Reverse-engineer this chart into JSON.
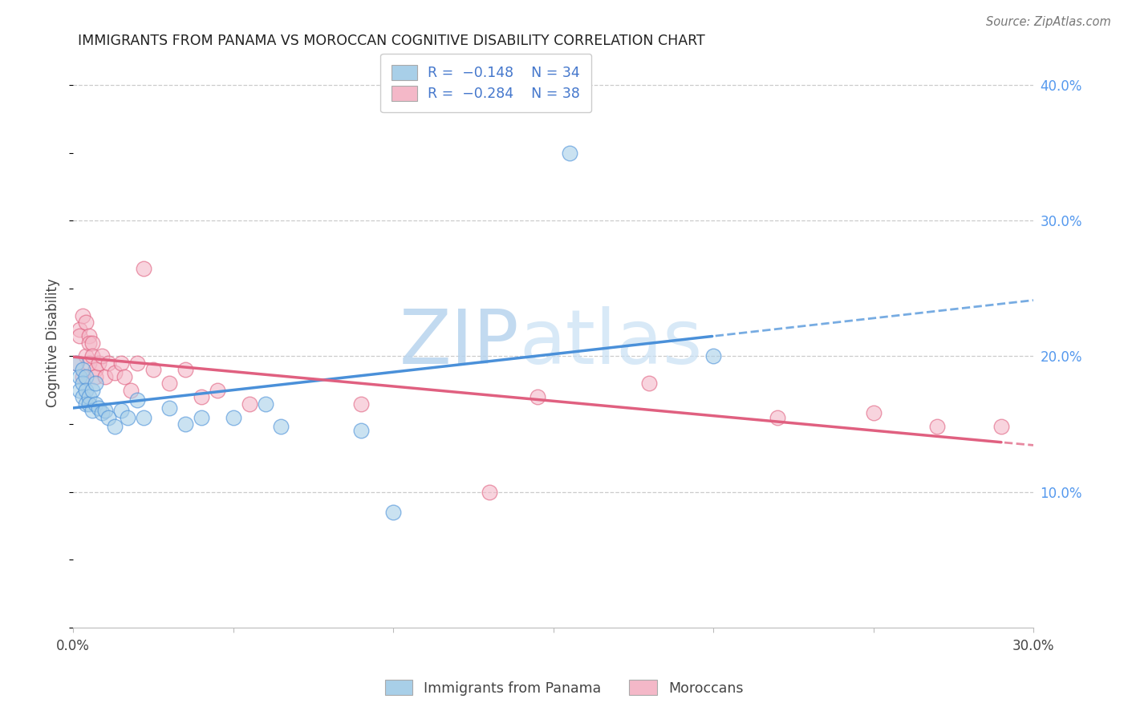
{
  "title": "IMMIGRANTS FROM PANAMA VS MOROCCAN COGNITIVE DISABILITY CORRELATION CHART",
  "source": "Source: ZipAtlas.com",
  "ylabel_label": "Cognitive Disability",
  "xlim": [
    0.0,
    0.3
  ],
  "ylim": [
    0.0,
    0.42
  ],
  "y_ticks_right": [
    0.1,
    0.2,
    0.3,
    0.4
  ],
  "y_tick_labels_right": [
    "10.0%",
    "20.0%",
    "30.0%",
    "40.0%"
  ],
  "color_blue": "#a8cfe8",
  "color_pink": "#f4b8c8",
  "color_blue_line": "#4a90d9",
  "color_pink_line": "#e06080",
  "watermark_zip": "ZIP",
  "watermark_atlas": "atlas",
  "panama_x": [
    0.001,
    0.002,
    0.002,
    0.003,
    0.003,
    0.003,
    0.004,
    0.004,
    0.004,
    0.005,
    0.005,
    0.006,
    0.006,
    0.007,
    0.007,
    0.008,
    0.009,
    0.01,
    0.011,
    0.013,
    0.015,
    0.017,
    0.02,
    0.022,
    0.03,
    0.035,
    0.04,
    0.05,
    0.06,
    0.065,
    0.09,
    0.1,
    0.155,
    0.2
  ],
  "panama_y": [
    0.195,
    0.185,
    0.175,
    0.19,
    0.18,
    0.17,
    0.185,
    0.175,
    0.165,
    0.17,
    0.165,
    0.175,
    0.16,
    0.18,
    0.165,
    0.162,
    0.158,
    0.16,
    0.155,
    0.148,
    0.16,
    0.155,
    0.168,
    0.155,
    0.162,
    0.15,
    0.155,
    0.155,
    0.165,
    0.148,
    0.145,
    0.085,
    0.35,
    0.2
  ],
  "morocco_x": [
    0.001,
    0.002,
    0.002,
    0.003,
    0.003,
    0.004,
    0.004,
    0.005,
    0.005,
    0.005,
    0.006,
    0.006,
    0.007,
    0.007,
    0.008,
    0.009,
    0.01,
    0.011,
    0.013,
    0.015,
    0.016,
    0.018,
    0.02,
    0.022,
    0.025,
    0.03,
    0.035,
    0.04,
    0.045,
    0.055,
    0.09,
    0.13,
    0.145,
    0.18,
    0.22,
    0.25,
    0.27,
    0.29
  ],
  "morocco_y": [
    0.195,
    0.22,
    0.215,
    0.185,
    0.23,
    0.225,
    0.2,
    0.215,
    0.21,
    0.195,
    0.21,
    0.2,
    0.19,
    0.185,
    0.195,
    0.2,
    0.185,
    0.195,
    0.188,
    0.195,
    0.185,
    0.175,
    0.195,
    0.265,
    0.19,
    0.18,
    0.19,
    0.17,
    0.175,
    0.165,
    0.165,
    0.1,
    0.17,
    0.18,
    0.155,
    0.158,
    0.148,
    0.148
  ]
}
